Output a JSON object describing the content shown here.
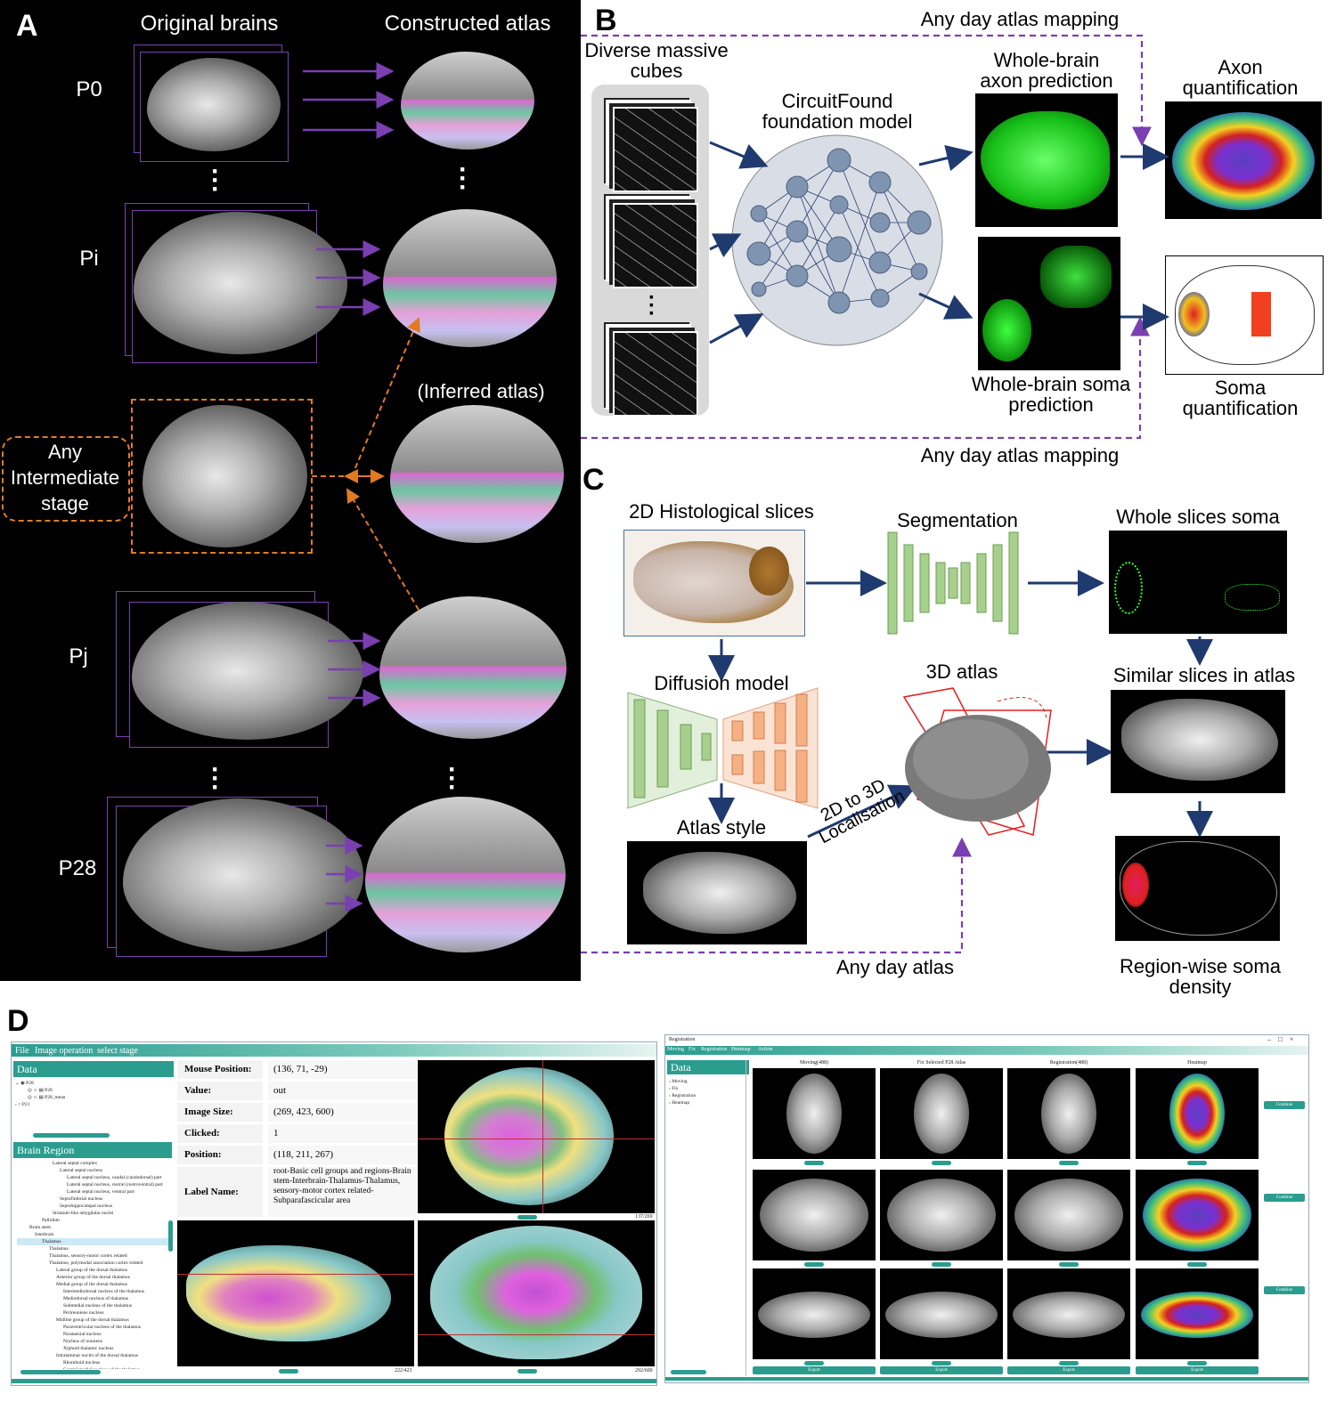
{
  "panels": {
    "A": "A",
    "B": "B",
    "C": "C",
    "D": "D"
  },
  "panelA": {
    "col_left": "Original brains",
    "col_right": "Constructed atlas",
    "stages": [
      "P0",
      "Pi",
      "Pj",
      "P28"
    ],
    "intermediate": "Any Intermediate stage",
    "inferred": "(Inferred atlas)"
  },
  "panelB": {
    "top_mapping": "Any day atlas mapping",
    "bottom_mapping": "Any day atlas mapping",
    "cubes": "Diverse massive cubes",
    "model": "CircuitFound foundation model",
    "axon_pred": "Whole-brain axon prediction",
    "soma_pred": "Whole-brain soma prediction",
    "axon_quant": "Axon quantification",
    "soma_quant": "Soma quantification"
  },
  "panelC": {
    "histo": "2D Histological slices",
    "segmentation": "Segmentation",
    "whole_soma": "Whole slices soma",
    "diffusion": "Diffusion model",
    "atlas3d": "3D atlas",
    "similar": "Similar slices in atlas",
    "atlas_style": "Atlas style",
    "localisation": "2D to 3D Localisation",
    "any_day": "Any day atlas",
    "density": "Region-wise soma density"
  },
  "panelD_left": {
    "menu": [
      "File",
      "Image operation",
      "select stage"
    ],
    "data_head": "Data",
    "data_items": [
      "P28",
      "P28",
      "P28_mean",
      "P21"
    ],
    "brain_region_head": "Brain Region",
    "tree": [
      "Lateral septal complex",
      "Lateral septal nucleus",
      "Lateral septal nucleus, caudal (caudodorsal) part",
      "Lateral septal nucleus, rostral (rostroventral) part",
      "Lateral septal nucleus, ventral part",
      "Septofimbrial nucleus",
      "Septohippocampal nucleus",
      "Striatum-like amygdalar nuclei",
      "Pallidum",
      "Brain stem",
      "Interbrain",
      "Thalamus",
      "Thalamus",
      "Thalamus, sensory-motor cortex related",
      "Thalamus, polymodal association cortex related",
      "Lateral group of the dorsal thalamus",
      "Anterior group of the dorsal thalamus",
      "Medial group of the dorsal thalamus",
      "Intermediodorsal nucleus of the thalamus",
      "Mediodorsal nucleus of thalamus",
      "Submedial nucleus of the thalamus",
      "Perireuniens nucleus",
      "Midline group of the dorsal thalamus",
      "Paraventricular nucleus of the thalamus",
      "Parataenial nucleus",
      "Nucleus of reuniens",
      "Xiphoid thalamic nucleus",
      "Intralaminar nuclei of the dorsal thalamus",
      "Rhomboid nucleus",
      "Central medial nucleus of the thalamus",
      "Paracentral nucleus"
    ],
    "info": [
      {
        "k": "Mouse Position:",
        "v": "(136, 71, -29)"
      },
      {
        "k": "Value:",
        "v": "out"
      },
      {
        "k": "Image Size:",
        "v": "(269, 423, 600)"
      },
      {
        "k": "Clicked:",
        "v": "1"
      },
      {
        "k": "Position:",
        "v": "(118, 211, 267)"
      },
      {
        "k": "Label Name:",
        "v": "root-Basic cell groups and regions-Brain stem-Interbrain-Thalamus-Thalamus, sensory-motor cortex related-Subparafascicular area"
      }
    ],
    "counters": [
      "137/269",
      "222/423",
      "292/600"
    ]
  },
  "panelD_right": {
    "title": "Registration",
    "menu": [
      "Moving",
      "Fix",
      "Registration",
      "Heatmap",
      "Action"
    ],
    "data_head": "Data",
    "data_items": [
      "Moving",
      "Fix",
      "Registration",
      "Heatmap"
    ],
    "columns": [
      "Moving(488)",
      "Fix Selected P28 Atlas",
      "Registration(488)",
      "Heatmap"
    ],
    "combine": [
      "Combine",
      "Combine",
      "Combine"
    ],
    "export": [
      "Export",
      "Export",
      "Export",
      "Export"
    ]
  },
  "colors": {
    "purple": "#7a3fb0",
    "orange": "#e07b22",
    "navy": "#1f3a6e",
    "teal": "#2a9d8f",
    "red": "#e02020",
    "green": "#7ab86a"
  }
}
